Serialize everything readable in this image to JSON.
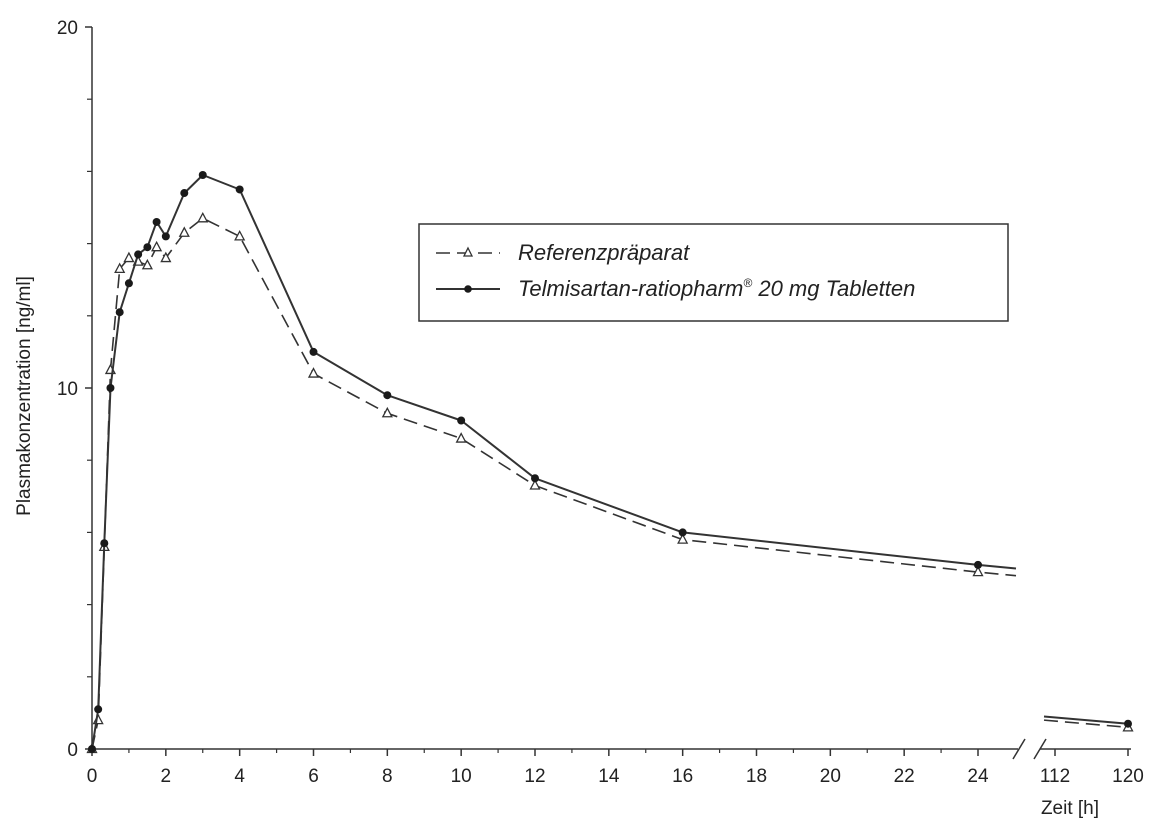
{
  "chart_data": {
    "type": "line",
    "xlabel": "Zeit [h]",
    "ylabel": "Plasmakonzentration [ng/ml]",
    "ylim": [
      0,
      20
    ],
    "yticks": [
      "0",
      "10",
      "20"
    ],
    "xlim_main": [
      0,
      25
    ],
    "xticks_main": [
      "0",
      "2",
      "4",
      "6",
      "8",
      "10",
      "12",
      "14",
      "16",
      "18",
      "20",
      "22",
      "24"
    ],
    "xlim_break": [
      110,
      120
    ],
    "xticks_break": [
      "112",
      "120"
    ],
    "legend_position": "upper-right",
    "series": [
      {
        "name": "Referenzpräparat",
        "line_style": "dashed",
        "marker": "open-triangle",
        "x": [
          0,
          0.167,
          0.333,
          0.5,
          0.75,
          1,
          1.25,
          1.5,
          1.75,
          2,
          2.5,
          3,
          4,
          6,
          8,
          10,
          12,
          16,
          24,
          120
        ],
        "y": [
          0,
          0.8,
          5.6,
          10.5,
          13.3,
          13.6,
          13.5,
          13.4,
          13.9,
          13.6,
          14.3,
          14.7,
          14.2,
          10.4,
          9.3,
          8.6,
          7.3,
          5.8,
          4.9,
          0.6
        ],
        "tail_to_break": 4.8,
        "head_from_break": 0.8
      },
      {
        "name": "Telmisartan-ratiopharm® 20 mg Tabletten",
        "line_style": "solid",
        "marker": "filled-circle",
        "x": [
          0,
          0.167,
          0.333,
          0.5,
          0.75,
          1,
          1.25,
          1.5,
          1.75,
          2,
          2.5,
          3,
          4,
          6,
          8,
          10,
          12,
          16,
          24,
          120
        ],
        "y": [
          0,
          1.1,
          5.7,
          10.0,
          12.1,
          12.9,
          13.7,
          13.9,
          14.6,
          14.2,
          15.4,
          15.9,
          15.5,
          11.0,
          9.8,
          9.1,
          7.5,
          6.0,
          5.1,
          0.7
        ],
        "tail_to_break": 5.0,
        "head_from_break": 0.9
      }
    ],
    "legend": {
      "entries": [
        {
          "text": "Referenzpräparat",
          "superscript": ""
        },
        {
          "text": "Telmisartan-ratiopharm",
          "superscript": "®",
          "suffix": " 20 mg Tabletten"
        }
      ]
    },
    "colors": {
      "line": "#333333",
      "axis": "#333333"
    }
  }
}
